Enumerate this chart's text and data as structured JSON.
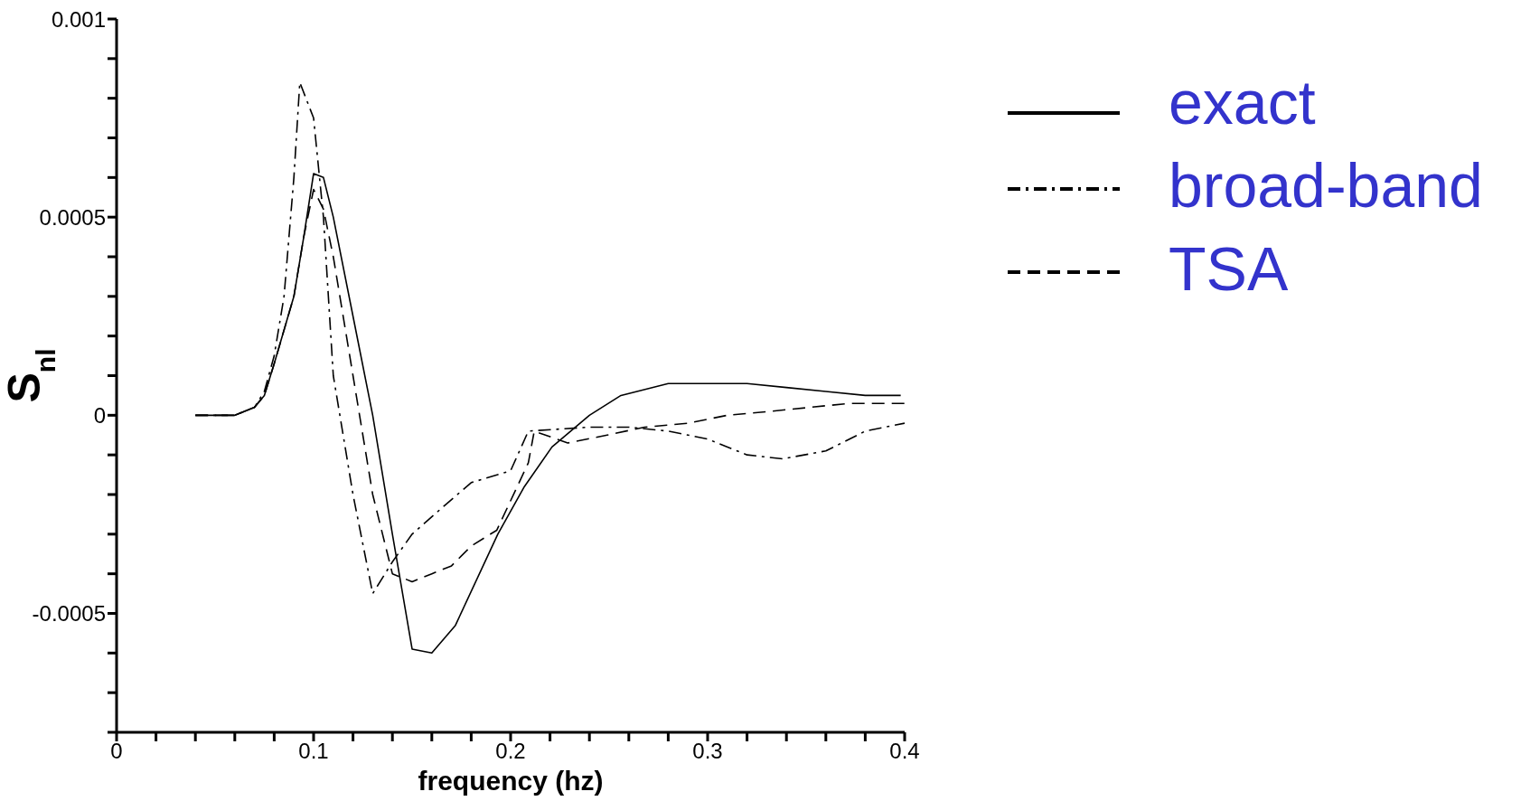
{
  "chart_data": {
    "type": "line",
    "xlabel": "frequency (hz)",
    "ylabel": "S$_{nl}$",
    "xlim": [
      0,
      0.4
    ],
    "ylim": [
      -0.0008,
      0.001
    ],
    "xticks": [
      0,
      {
        "value": 0.02,
        "label": null
      },
      {
        "value": 0.04,
        "label": null
      },
      {
        "value": 0.06,
        "label": null
      },
      {
        "value": 0.08,
        "label": null
      },
      0.1,
      {
        "value": 0.12,
        "label": null
      },
      {
        "value": 0.14,
        "label": null
      },
      {
        "value": 0.16,
        "label": null
      },
      {
        "value": 0.18,
        "label": null
      },
      0.2,
      {
        "value": 0.22,
        "label": null
      },
      {
        "value": 0.24,
        "label": null
      },
      {
        "value": 0.26,
        "label": null
      },
      {
        "value": 0.28,
        "label": null
      },
      0.3,
      {
        "value": 0.32,
        "label": null
      },
      {
        "value": 0.34,
        "label": null
      },
      {
        "value": 0.36,
        "label": null
      },
      {
        "value": 0.38,
        "label": null
      },
      0.4
    ],
    "yticks": [
      {
        "value": -0.0008,
        "label": null
      },
      {
        "value": -0.0007,
        "label": null
      },
      {
        "value": -0.0006,
        "label": null
      },
      -0.0005,
      {
        "value": -0.0004,
        "label": null
      },
      {
        "value": -0.0003,
        "label": null
      },
      {
        "value": -0.0002,
        "label": null
      },
      {
        "value": -0.0001,
        "label": null
      },
      0,
      {
        "value": 0.0001,
        "label": null
      },
      {
        "value": 0.0002,
        "label": null
      },
      {
        "value": 0.0003,
        "label": null
      },
      {
        "value": 0.0004,
        "label": null
      },
      0.0005,
      {
        "value": 0.0006,
        "label": null
      },
      {
        "value": 0.0007,
        "label": null
      },
      {
        "value": 0.0008,
        "label": null
      },
      {
        "value": 0.0009,
        "label": null
      },
      0.001
    ],
    "grid": false,
    "legend": "top right",
    "marker": "none",
    "series": [
      {
        "name": "exact",
        "color": "#000000",
        "line_style": "solid",
        "x": [
          0.04,
          0.06,
          0.07,
          0.075,
          0.08,
          0.09,
          0.095,
          0.1,
          0.105,
          0.11,
          0.12,
          0.13,
          0.14,
          0.15,
          0.16,
          0.172,
          0.1935,
          0.207,
          0.221,
          0.24,
          0.256,
          0.28,
          0.2935,
          0.32,
          0.34,
          0.36,
          0.38,
          0.398
        ],
        "values": [
          0,
          0,
          2e-05,
          5e-05,
          0.00013,
          0.0003,
          0.00045,
          0.00061,
          0.0006,
          0.0005,
          0.00025,
          0,
          -0.0003,
          -0.00059,
          -0.0006,
          -0.00053,
          -0.0003,
          -0.00018,
          -8e-05,
          0,
          5e-05,
          8e-05,
          8e-05,
          8e-05,
          7e-05,
          6e-05,
          5e-05,
          5e-05
        ]
      },
      {
        "name": "broad-band",
        "color": "#000000",
        "line_style": "dashdot",
        "x": [
          0.04,
          0.06,
          0.07,
          0.075,
          0.08,
          0.085,
          0.09,
          0.093,
          0.1,
          0.105,
          0.11,
          0.12,
          0.13,
          0.14,
          0.15,
          0.166,
          0.18,
          0.2,
          0.209,
          0.24,
          0.26,
          0.28,
          0.3,
          0.32,
          0.338,
          0.36,
          0.38,
          0.4
        ],
        "values": [
          0,
          0,
          2e-05,
          6e-05,
          0.00015,
          0.0003,
          0.0006,
          0.00084,
          0.00075,
          0.0005,
          0.0001,
          -0.0002,
          -0.00045,
          -0.00037,
          -0.0003,
          -0.00023,
          -0.00017,
          -0.00014,
          -4e-05,
          -3e-05,
          -3e-05,
          -4e-05,
          -6e-05,
          -0.0001,
          -0.00011,
          -9e-05,
          -4e-05,
          -2e-05
        ]
      },
      {
        "name": "TSA",
        "color": "#000000",
        "line_style": "dashed",
        "x": [
          0.04,
          0.06,
          0.07,
          0.075,
          0.08,
          0.09,
          0.095,
          0.1,
          0.105,
          0.11,
          0.12,
          0.13,
          0.14,
          0.15,
          0.16,
          0.17,
          0.18,
          0.193,
          0.209,
          0.212,
          0.229,
          0.249,
          0.268,
          0.29,
          0.31,
          0.332,
          0.352,
          0.372,
          0.4
        ],
        "values": [
          0,
          0,
          2e-05,
          5e-05,
          0.00013,
          0.0003,
          0.00045,
          0.00057,
          0.00052,
          0.0004,
          0.0001,
          -0.0002,
          -0.0004,
          -0.00042,
          -0.0004,
          -0.00038,
          -0.00033,
          -0.00029,
          -0.00012,
          -4e-05,
          -7e-05,
          -5e-05,
          -3e-05,
          -2e-05,
          0,
          1e-05,
          2e-05,
          3e-05,
          3e-05
        ]
      }
    ]
  }
}
